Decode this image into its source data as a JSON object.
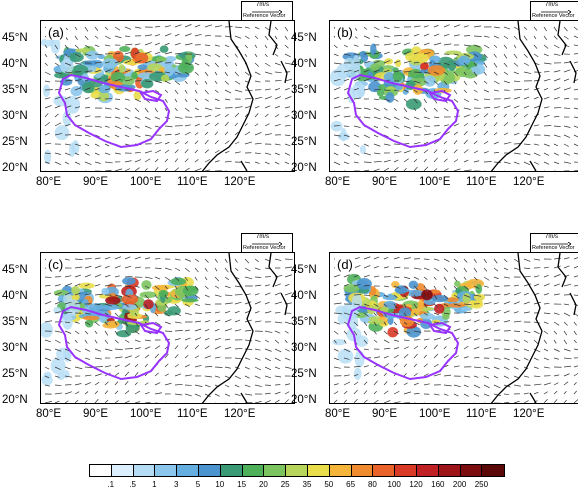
{
  "panels": [
    {
      "label": "(a)",
      "idx": 0
    },
    {
      "label": "(b)",
      "idx": 1
    },
    {
      "label": "(c)",
      "idx": 2
    },
    {
      "label": "(d)",
      "idx": 3
    }
  ],
  "y_ticks": [
    "45°N",
    "40°N",
    "35°N",
    "30°N",
    "25°N",
    "20°N"
  ],
  "x_ticks": [
    "80°E",
    "90°E",
    "100°E",
    "110°E",
    "120°E"
  ],
  "ref_vector": {
    "speed": "7m/s",
    "label": "Reference Vector"
  },
  "colorbar": {
    "ticks": [
      ".1",
      ".5",
      "1",
      "3",
      "5",
      "10",
      "15",
      "20",
      "25",
      "35",
      "50",
      "65",
      "80",
      "100",
      "120",
      "160",
      "200",
      "250"
    ],
    "colors": [
      "#ffffff",
      "#dcefff",
      "#b4dcf5",
      "#8cc6ec",
      "#64aee0",
      "#4a93cf",
      "#3a9a76",
      "#4fb05a",
      "#7cc460",
      "#b6d55a",
      "#e9dd4a",
      "#f5b53b",
      "#f08a2e",
      "#e8622a",
      "#d83a26",
      "#bf2124",
      "#9d1419",
      "#7c0d0f",
      "#5a0808"
    ]
  },
  "map_style": {
    "outline_color": "#9933ff",
    "coast_color": "#000000",
    "vector_color": "#333333"
  }
}
